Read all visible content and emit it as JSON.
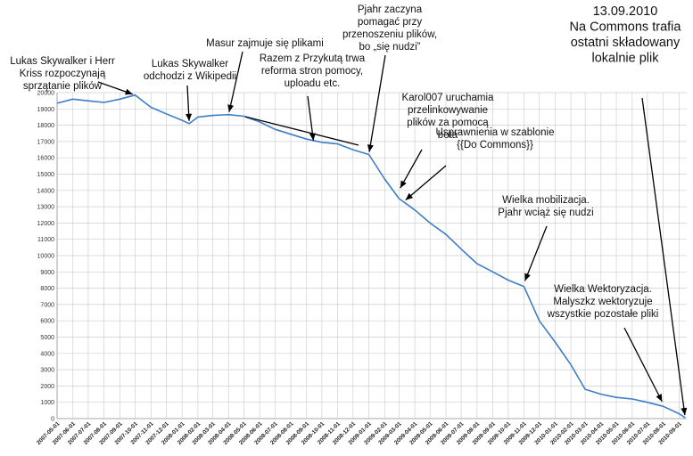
{
  "chart_data": {
    "type": "line",
    "title": "",
    "xlabel": "",
    "ylabel": "",
    "ylim": [
      0,
      20000
    ],
    "y_ticks": [
      0,
      1000,
      2000,
      3000,
      4000,
      5000,
      6000,
      7000,
      8000,
      9000,
      10000,
      11000,
      12000,
      13000,
      14000,
      15000,
      16000,
      17000,
      18000,
      19000,
      20000
    ],
    "x_tick_labels": [
      "2007-05-01",
      "2007-06-01",
      "2007-07-01",
      "2007-08-01",
      "2007-09-01",
      "2007-10-01",
      "2007-11-01",
      "2007-12-01",
      "2008-01-01",
      "2008-02-01",
      "2008-03-01",
      "2008-04-01",
      "2008-05-01",
      "2008-06-01",
      "2008-07-01",
      "2008-08-01",
      "2008-09-01",
      "2008-10-01",
      "2008-11-01",
      "2008-12-01",
      "2009-01-01",
      "2009-02-01",
      "2009-03-01",
      "2009-04-01",
      "2009-05-01",
      "2009-06-01",
      "2009-07-01",
      "2009-08-01",
      "2009-09-01",
      "2009-10-01",
      "2009-11-01",
      "2009-12-01",
      "2010-01-01",
      "2010-02-01",
      "2010-03-01",
      "2010-04-01",
      "2010-05-01",
      "2010-06-01",
      "2010-07-01",
      "2010-08-01",
      "2010-09-01"
    ],
    "grid": true,
    "legend": "none",
    "series": [
      {
        "color": "#3d7dc8",
        "x": [
          "2007-05-01",
          "2007-06-01",
          "2007-07-01",
          "2007-08-01",
          "2007-09-01",
          "2007-10-01",
          "2007-11-01",
          "2007-12-01",
          "2008-01-01",
          "2008-01-15",
          "2008-02-01",
          "2008-03-01",
          "2008-04-01",
          "2008-05-01",
          "2008-06-01",
          "2008-07-01",
          "2008-08-01",
          "2008-09-01",
          "2008-10-01",
          "2008-11-01",
          "2008-12-01",
          "2009-01-01",
          "2009-02-01",
          "2009-03-01",
          "2009-04-01",
          "2009-05-01",
          "2009-06-01",
          "2009-07-01",
          "2009-08-01",
          "2009-09-01",
          "2009-10-01",
          "2009-11-01",
          "2009-12-01",
          "2010-01-01",
          "2010-02-01",
          "2010-03-01",
          "2010-04-01",
          "2010-05-01",
          "2010-06-01",
          "2010-07-01",
          "2010-08-01",
          "2010-09-01",
          "2010-09-13"
        ],
        "values": [
          19350,
          19600,
          19500,
          19400,
          19600,
          19850,
          19100,
          18700,
          18300,
          18100,
          18500,
          18600,
          18650,
          18550,
          18200,
          17750,
          17450,
          17150,
          16950,
          16850,
          16500,
          16200,
          14700,
          13500,
          12800,
          12000,
          11300,
          10400,
          9500,
          9000,
          8500,
          8100,
          6000,
          4700,
          3300,
          1800,
          1500,
          1300,
          1200,
          1000,
          750,
          300,
          50
        ]
      }
    ],
    "annotations": [
      {
        "lines": [
          "Lukas Skywalker i Herr",
          "Kriss rozpoczynają",
          "sprzątanie plików"
        ],
        "date": "2007-10-01",
        "value": 19850
      },
      {
        "lines": [
          "Lukas Skywalker",
          "odchodzi z Wikipedii"
        ],
        "date": "2008-01-15",
        "value": 18100
      },
      {
        "lines": [
          "Masur zajmuje się plikami"
        ],
        "date": "2008-04-01",
        "value": 18650
      },
      {
        "lines": [
          "Razem z Przykutą trwa",
          "reforma stron pomocy,",
          "uploadu etc."
        ],
        "date": "2008-09-15",
        "value": 16900
      },
      {
        "lines": [
          "Pjahr zaczyna",
          "pomagać przy",
          "przenoszeniu plików,",
          "bo „się nudzi”"
        ],
        "date": "2009-01-01",
        "value": 16200
      },
      {
        "lines": [
          "Karol007 uruchamia",
          "przelinkowywanie",
          "plików za pomocą",
          "bota"
        ],
        "date": "2009-03-01",
        "value": 14000
      },
      {
        "lines": [
          "Usprawnienia w szablonie",
          "{{Do Commons}}"
        ],
        "date": "2009-03-10",
        "value": 13300
      },
      {
        "lines": [
          "Wielka mobilizacja.",
          "Pjahr wciąż się nudzi"
        ],
        "date": "2009-11-01",
        "value": 8300
      },
      {
        "lines": [
          "Wielka Wektoryzacja.",
          "Malyszkz wektoryzuje",
          "wszystkie pozostałe pliki"
        ],
        "date": "2010-08-01",
        "value": 900
      },
      {
        "lines": [
          "13.09.2010",
          "Na Commons trafia",
          "ostatni składowany",
          "lokalnie plik"
        ],
        "date": "2010-09-13",
        "value": 50
      }
    ]
  }
}
